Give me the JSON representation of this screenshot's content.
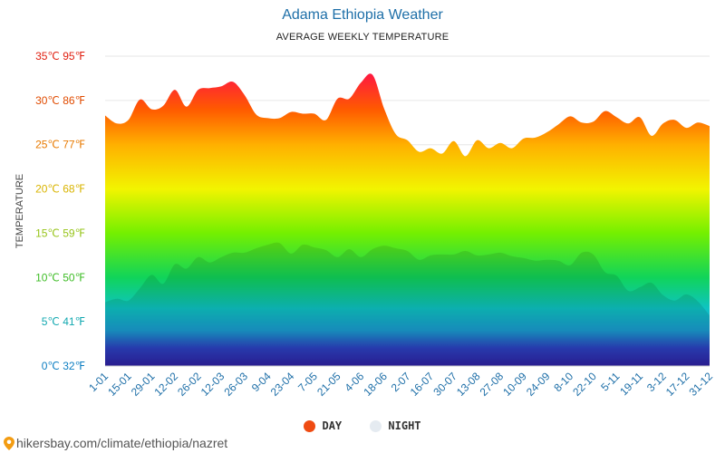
{
  "chart_data": {
    "type": "area",
    "title": "Adama Ethiopia Weather",
    "subtitle": "AVERAGE WEEKLY TEMPERATURE",
    "ylabel": "TEMPERATURE",
    "ylim": [
      0,
      35
    ],
    "yticks": [
      {
        "value": 0,
        "label": "0℃ 32℉",
        "color": "#0d7ec2"
      },
      {
        "value": 5,
        "label": "5℃ 41℉",
        "color": "#12a8b0"
      },
      {
        "value": 10,
        "label": "10℃ 50℉",
        "color": "#3fbd27"
      },
      {
        "value": 15,
        "label": "15℃ 59℉",
        "color": "#96c418"
      },
      {
        "value": 20,
        "label": "20℃ 68℉",
        "color": "#d9b400"
      },
      {
        "value": 25,
        "label": "25℃ 77℉",
        "color": "#e87a00"
      },
      {
        "value": 30,
        "label": "30℃ 86℉",
        "color": "#e04b00"
      },
      {
        "value": 35,
        "label": "35℃ 95℉",
        "color": "#e01f10"
      }
    ],
    "x_labels": [
      "1-01",
      "15-01",
      "29-01",
      "12-02",
      "26-02",
      "12-03",
      "26-03",
      "9-04",
      "23-04",
      "7-05",
      "21-05",
      "4-06",
      "18-06",
      "2-07",
      "16-07",
      "30-07",
      "13-08",
      "27-08",
      "10-09",
      "24-09",
      "8-10",
      "22-10",
      "5-11",
      "19-11",
      "3-12",
      "17-12",
      "31-12"
    ],
    "series": [
      {
        "name": "DAY",
        "color": "#ef4b12",
        "values": [
          28.3,
          27.4,
          27.8,
          30.1,
          29.0,
          29.4,
          31.2,
          29.3,
          31.2,
          31.4,
          31.6,
          32.1,
          30.6,
          28.4,
          28.0,
          28.0,
          28.7,
          28.5,
          28.5,
          27.8,
          30.2,
          30.2,
          32.0,
          32.9,
          29.1,
          26.2,
          25.5,
          24.2,
          24.6,
          24.0,
          25.4,
          23.7,
          25.5,
          24.6,
          25.2,
          24.6,
          25.7,
          25.8,
          26.4,
          27.3,
          28.2,
          27.5,
          27.6,
          28.8,
          28.1,
          27.4,
          28.1,
          26.0,
          27.4,
          27.8,
          26.9,
          27.5,
          27.1
        ]
      },
      {
        "name": "NIGHT",
        "color": "#e5ebf1",
        "values": [
          7.2,
          7.6,
          7.4,
          8.8,
          10.3,
          9.3,
          11.5,
          11.0,
          12.3,
          11.7,
          12.3,
          12.8,
          12.8,
          13.3,
          13.7,
          13.9,
          12.7,
          13.7,
          13.4,
          13.1,
          12.3,
          13.2,
          12.3,
          13.2,
          13.6,
          13.3,
          13.0,
          12.0,
          12.5,
          12.6,
          12.6,
          13.0,
          12.5,
          12.6,
          12.8,
          12.4,
          12.2,
          11.9,
          12.0,
          11.9,
          11.4,
          12.8,
          12.6,
          10.6,
          10.2,
          8.5,
          8.9,
          9.4,
          8.0,
          7.4,
          8.1,
          7.3,
          5.7
        ]
      }
    ],
    "legend": [
      {
        "label": "DAY",
        "color": "#ef4b12"
      },
      {
        "label": "NIGHT",
        "color": "#e5ebf1"
      }
    ],
    "gradient_stops": [
      {
        "value": 0,
        "color": "#2e21a0"
      },
      {
        "value": 2,
        "color": "#2c40c0"
      },
      {
        "value": 4,
        "color": "#1a9bd0"
      },
      {
        "value": 6.5,
        "color": "#0ec3c3"
      },
      {
        "value": 10,
        "color": "#10d45a"
      },
      {
        "value": 15,
        "color": "#74f000"
      },
      {
        "value": 20,
        "color": "#f2f400"
      },
      {
        "value": 25,
        "color": "#ffb000"
      },
      {
        "value": 29,
        "color": "#ff5a00"
      },
      {
        "value": 33,
        "color": "#ff1840"
      }
    ]
  },
  "footer": {
    "text": "hikersbay.com/climate/ethiopia/nazret"
  }
}
